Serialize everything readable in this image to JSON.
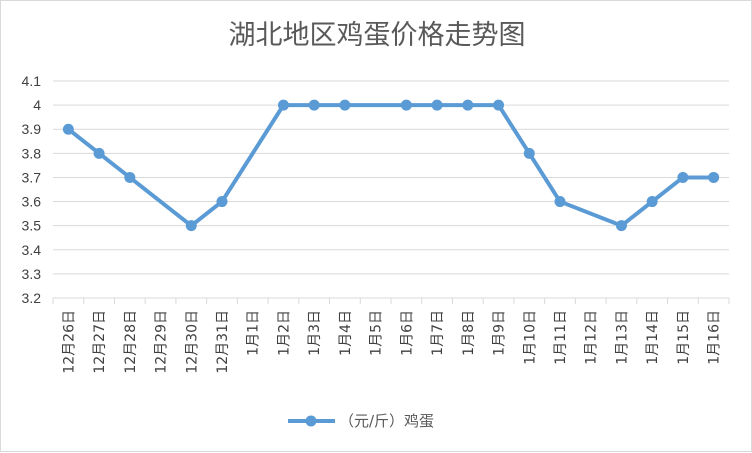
{
  "chart_data": {
    "type": "line",
    "title": "湖北地区鸡蛋价格走势图",
    "categories": [
      "12月26日",
      "12月27日",
      "12月28日",
      "12月29日",
      "12月30日",
      "12月31日",
      "1月1日",
      "1月2日",
      "1月3日",
      "1月4日",
      "1月5日",
      "1月6日",
      "1月7日",
      "1月8日",
      "1月9日",
      "1月10日",
      "1月11日",
      "1月12日",
      "1月13日",
      "1月14日",
      "1月15日",
      "1月16日"
    ],
    "series": [
      {
        "name": "（元/斤）鸡蛋",
        "values": [
          3.9,
          3.8,
          3.7,
          null,
          3.5,
          3.6,
          null,
          4.0,
          4.0,
          4.0,
          null,
          4.0,
          4.0,
          4.0,
          4.0,
          3.8,
          3.6,
          null,
          3.5,
          3.6,
          3.7,
          3.7
        ],
        "color": "#5b9bd5"
      }
    ],
    "yticks": [
      "3.2",
      "3.3",
      "3.4",
      "3.5",
      "3.6",
      "3.7",
      "3.8",
      "3.9",
      "4",
      "4.1"
    ],
    "ylim": [
      3.2,
      4.1
    ],
    "xlabel": "",
    "ylabel": "",
    "grid": true,
    "legend_position": "bottom"
  }
}
